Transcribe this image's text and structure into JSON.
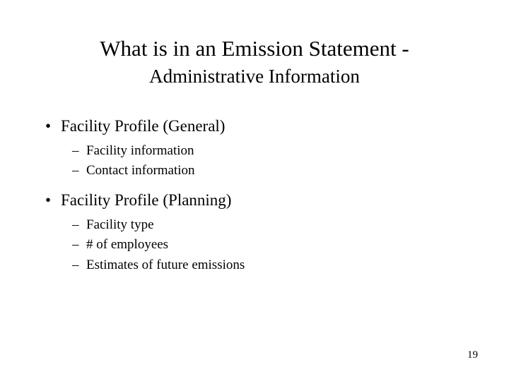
{
  "title": "What is in an Emission Statement -",
  "subtitle": "Administrative Information",
  "bullets": [
    {
      "label": "Facility Profile (General)",
      "sub": [
        "Facility information",
        "Contact information"
      ]
    },
    {
      "label": "Facility Profile (Planning)",
      "sub": [
        "Facility type",
        "# of employees",
        "Estimates of future emissions"
      ]
    }
  ],
  "page_number": "19"
}
